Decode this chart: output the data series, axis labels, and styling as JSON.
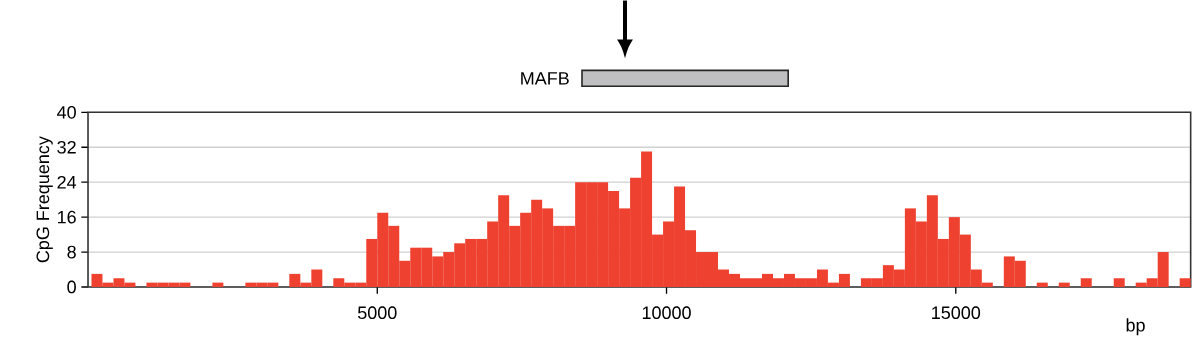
{
  "chart_data": {
    "type": "histogram",
    "xlabel": "bp",
    "ylabel": "CpG Frequency",
    "color": "#ee4130",
    "bins": [
      60,
      250,
      440,
      630,
      820,
      1010,
      1200,
      1390,
      1580,
      1770,
      1960,
      2150,
      2340,
      2530,
      2720,
      2910,
      3100,
      3290,
      3480,
      3670,
      3860,
      4050,
      4240,
      4430,
      4620,
      4810,
      5000,
      5190,
      5380,
      5570,
      5760,
      5950,
      6140,
      6330,
      6520,
      6710,
      6900,
      7090,
      7280,
      7470,
      7660,
      7850,
      8040,
      8230,
      8420,
      8610,
      8800,
      8990,
      9180,
      9370,
      9560,
      9750,
      9940,
      10130,
      10320,
      10510,
      10700,
      10890,
      11080,
      11270,
      11460,
      11650,
      11840,
      12030,
      12220,
      12410,
      12600,
      12790,
      12980,
      13170,
      13360,
      13550,
      13740,
      13930,
      14120,
      14310,
      14500,
      14690,
      14880,
      15070,
      15260,
      15450,
      15640,
      15830,
      16020,
      16210,
      16400,
      16590,
      16780,
      16970,
      17160,
      17350,
      17540,
      17730,
      17920,
      18110,
      18300,
      18490,
      18680,
      18870,
      19060
    ],
    "values": [
      3,
      1,
      2,
      1,
      0,
      1,
      1,
      1,
      1,
      0,
      0,
      1,
      0,
      0,
      1,
      1,
      1,
      0,
      3,
      1,
      4,
      0,
      2,
      1,
      1,
      11,
      17,
      14,
      6,
      9,
      9,
      7,
      8,
      10,
      11,
      11,
      15,
      21,
      14,
      17,
      20,
      18,
      14,
      14,
      24,
      24,
      24,
      22,
      18,
      25,
      31,
      12,
      15,
      23,
      13,
      8,
      8,
      4,
      3,
      2,
      2,
      3,
      2,
      3,
      2,
      2,
      4,
      1,
      3,
      0,
      2,
      2,
      5,
      4,
      18,
      15,
      21,
      11,
      16,
      12,
      4,
      1,
      0,
      7,
      6,
      0,
      1,
      0,
      1,
      0,
      2,
      0,
      0,
      2,
      0,
      1,
      2,
      8,
      0,
      2
    ],
    "xlim": [
      0,
      19060
    ],
    "ylim": [
      0,
      40
    ],
    "xticks": [
      5000,
      10000,
      15000
    ],
    "yticks": [
      0,
      8,
      16,
      24,
      32,
      40
    ],
    "grid": "y",
    "annotations": [
      "MAFB"
    ]
  }
}
